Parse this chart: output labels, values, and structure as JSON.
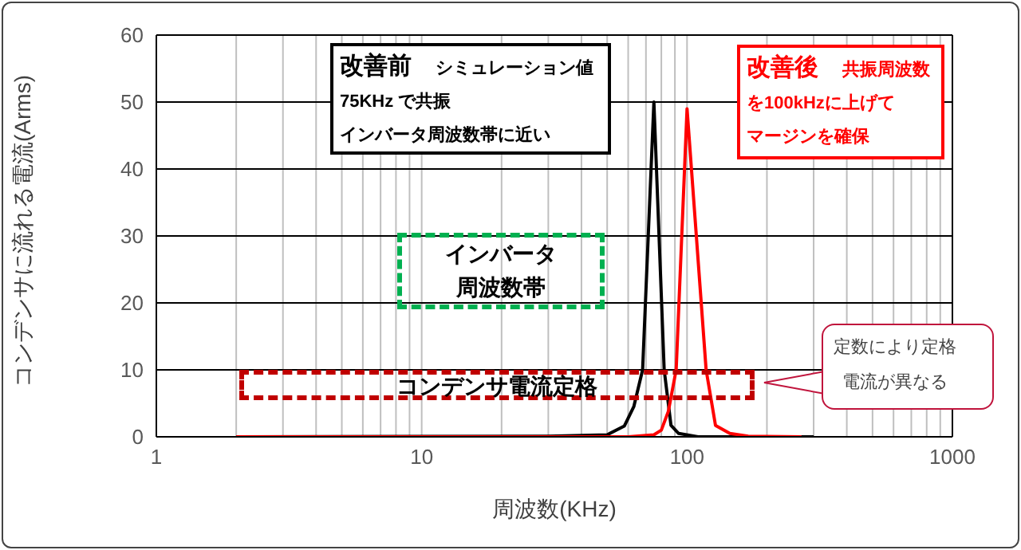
{
  "chart_data": {
    "type": "line",
    "xlabel": "周波数(KHz)",
    "ylabel": "コンデンサに流れる電流(Arms)",
    "log": "x",
    "xlim": [
      1,
      1000
    ],
    "xticks": [
      1,
      {
        "value": 2,
        "label": null
      },
      {
        "value": 3,
        "label": null
      },
      {
        "value": 4,
        "label": null
      },
      {
        "value": 5,
        "label": null
      },
      {
        "value": 6,
        "label": null
      },
      {
        "value": 7,
        "label": null
      },
      {
        "value": 8,
        "label": null
      },
      {
        "value": 9,
        "label": null
      },
      10,
      {
        "value": 20,
        "label": null
      },
      {
        "value": 30,
        "label": null
      },
      {
        "value": 40,
        "label": null
      },
      {
        "value": 50,
        "label": null
      },
      {
        "value": 60,
        "label": null
      },
      {
        "value": 70,
        "label": null
      },
      {
        "value": 80,
        "label": null
      },
      {
        "value": 90,
        "label": null
      },
      100,
      {
        "value": 200,
        "label": null
      },
      {
        "value": 300,
        "label": null
      },
      {
        "value": 400,
        "label": null
      },
      {
        "value": 500,
        "label": null
      },
      {
        "value": 600,
        "label": null
      },
      {
        "value": 700,
        "label": null
      },
      {
        "value": 800,
        "label": null
      },
      {
        "value": 900,
        "label": null
      },
      1000
    ],
    "ylim": [
      0,
      60
    ],
    "yticks": [
      0,
      10,
      20,
      30,
      40,
      50,
      60
    ],
    "grid": true,
    "marker": "none",
    "line_style": "solid",
    "series": [
      {
        "color": "#000000",
        "x": [
          2,
          30,
          50,
          58,
          63,
          68,
          75,
          82,
          87,
          93,
          110,
          300
        ],
        "values": [
          0,
          0.1,
          0.3,
          1.6,
          4.5,
          10,
          50,
          10,
          1.7,
          0.5,
          0,
          0
        ]
      },
      {
        "color": "#ff0000",
        "x": [
          2,
          60,
          75,
          80,
          85,
          91,
          100,
          118,
          128,
          145,
          170,
          270
        ],
        "values": [
          0,
          0,
          0.3,
          1,
          3.8,
          10,
          49,
          10,
          1.7,
          0.5,
          0.1,
          0
        ]
      }
    ],
    "annotations": [
      "改善前　シミュレーション値",
      "75KHz で共振",
      "インバータ周波数帯に近い",
      "改善後　共振周波数",
      "を100kHzに上げて",
      "マージンを確保",
      "定数により定格電流が異なる",
      "インバータ周波数帯",
      "コンデンサ電流定格"
    ]
  }
}
